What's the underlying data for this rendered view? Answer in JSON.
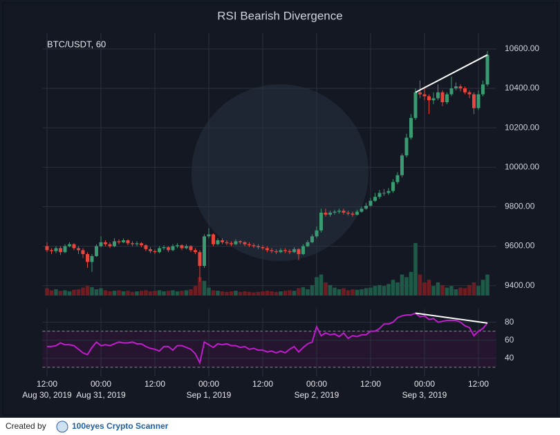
{
  "chart_data": {
    "type": "candlestick",
    "title": "RSI Bearish Divergence",
    "symbol_label": "BTC/USDT, 60",
    "up_color": "#3a9a72",
    "down_color": "#e8453c",
    "grid": true,
    "xlim": [
      -1,
      100
    ],
    "xticks": [
      {
        "value": 0,
        "label": "12:00"
      },
      {
        "value": 12,
        "label": "00:00"
      },
      {
        "value": 24,
        "label": "12:00"
      },
      {
        "value": 36,
        "label": "00:00"
      },
      {
        "value": 48,
        "label": "12:00"
      },
      {
        "value": 60,
        "label": "00:00"
      },
      {
        "value": 72,
        "label": "12:00"
      },
      {
        "value": 84,
        "label": "00:00"
      },
      {
        "value": 96,
        "label": "12:00"
      }
    ],
    "xdates": [
      {
        "value": 0,
        "label": "Aug 30, 2019"
      },
      {
        "value": 12,
        "label": "Aug 31, 2019"
      },
      {
        "value": 36,
        "label": "Sep 1, 2019"
      },
      {
        "value": 60,
        "label": "Sep 2, 2019"
      },
      {
        "value": 84,
        "label": "Sep 3, 2019"
      }
    ],
    "ylim": [
      9350,
      10680
    ],
    "yticks": [
      {
        "value": 9400,
        "label": "9400.00"
      },
      {
        "value": 9600,
        "label": "9600.00"
      },
      {
        "value": 9800,
        "label": "9800.00"
      },
      {
        "value": 10000,
        "label": "10000.00"
      },
      {
        "value": 10200,
        "label": "10200.00"
      },
      {
        "value": 10400,
        "label": "10400.00"
      },
      {
        "value": 10600,
        "label": "10600.00"
      }
    ],
    "open": [
      9600,
      9580,
      9575,
      9590,
      9570,
      9600,
      9610,
      9590,
      9580,
      9560,
      9520,
      9550,
      9600,
      9620,
      9610,
      9600,
      9625,
      9620,
      9630,
      9615,
      9610,
      9615,
      9605,
      9585,
      9575,
      9570,
      9590,
      9595,
      9580,
      9600,
      9605,
      9590,
      9600,
      9580,
      9570,
      9500,
      9650,
      9660,
      9610,
      9630,
      9620,
      9615,
      9610,
      9625,
      9620,
      9610,
      9605,
      9600,
      9595,
      9590,
      9580,
      9575,
      9570,
      9580,
      9575,
      9570,
      9585,
      9560,
      9600,
      9620,
      9650,
      9680,
      9770,
      9760,
      9770,
      9775,
      9780,
      9770,
      9765,
      9760,
      9775,
      9790,
      9805,
      9830,
      9850,
      9870,
      9870,
      9880,
      9925,
      9960,
      10060,
      10150,
      10250,
      10380,
      10370,
      10360,
      10340,
      10350,
      10380,
      10330,
      10370,
      10400,
      10410,
      10400,
      10380,
      10370,
      10300,
      10370,
      10420
    ],
    "high": [
      9620,
      9590,
      9600,
      9600,
      9610,
      9620,
      9615,
      9600,
      9590,
      9570,
      9560,
      9610,
      9650,
      9630,
      9620,
      9640,
      9635,
      9640,
      9635,
      9625,
      9625,
      9620,
      9610,
      9595,
      9585,
      9600,
      9605,
      9600,
      9610,
      9615,
      9610,
      9610,
      9605,
      9590,
      9580,
      9660,
      9690,
      9665,
      9640,
      9640,
      9630,
      9625,
      9635,
      9630,
      9625,
      9620,
      9615,
      9610,
      9605,
      9600,
      9590,
      9585,
      9590,
      9590,
      9585,
      9595,
      9590,
      9610,
      9630,
      9660,
      9700,
      9790,
      9790,
      9780,
      9785,
      9790,
      9790,
      9780,
      9775,
      9785,
      9800,
      9820,
      9845,
      9870,
      9885,
      9890,
      9895,
      9940,
      9975,
      10070,
      10170,
      10270,
      10400,
      10440,
      10400,
      10370,
      10380,
      10420,
      10390,
      10380,
      10460,
      10430,
      10420,
      10410,
      10390,
      10380,
      10390,
      10440,
      10590
    ],
    "low": [
      9570,
      9560,
      9565,
      9555,
      9565,
      9595,
      9580,
      9560,
      9540,
      9490,
      9470,
      9545,
      9595,
      9600,
      9590,
      9595,
      9610,
      9615,
      9605,
      9600,
      9600,
      9595,
      9575,
      9565,
      9560,
      9565,
      9580,
      9570,
      9575,
      9590,
      9580,
      9585,
      9570,
      9560,
      9420,
      9490,
      9640,
      9600,
      9605,
      9610,
      9605,
      9600,
      9605,
      9610,
      9600,
      9595,
      9590,
      9585,
      9580,
      9570,
      9565,
      9560,
      9565,
      9565,
      9560,
      9565,
      9530,
      9555,
      9595,
      9615,
      9640,
      9670,
      9750,
      9750,
      9760,
      9765,
      9760,
      9755,
      9750,
      9755,
      9770,
      9785,
      9800,
      9825,
      9840,
      9855,
      9860,
      9870,
      9915,
      9950,
      10050,
      10140,
      10240,
      10350,
      10340,
      10270,
      10320,
      10340,
      10310,
      10320,
      10360,
      10390,
      10385,
      10370,
      10350,
      10270,
      10290,
      10360,
      10410
    ],
    "close": [
      9580,
      9575,
      9590,
      9570,
      9600,
      9610,
      9590,
      9580,
      9560,
      9520,
      9550,
      9600,
      9620,
      9610,
      9600,
      9625,
      9620,
      9630,
      9615,
      9610,
      9615,
      9605,
      9585,
      9575,
      9570,
      9590,
      9595,
      9580,
      9600,
      9605,
      9590,
      9600,
      9580,
      9570,
      9500,
      9650,
      9660,
      9610,
      9630,
      9620,
      9615,
      9610,
      9625,
      9620,
      9610,
      9605,
      9600,
      9595,
      9590,
      9580,
      9575,
      9570,
      9580,
      9575,
      9570,
      9585,
      9560,
      9600,
      9620,
      9650,
      9680,
      9770,
      9760,
      9770,
      9775,
      9780,
      9770,
      9765,
      9760,
      9775,
      9790,
      9805,
      9830,
      9850,
      9870,
      9870,
      9880,
      9925,
      9960,
      10060,
      10150,
      10250,
      10380,
      10370,
      10360,
      10340,
      10350,
      10380,
      10330,
      10370,
      10400,
      10410,
      10400,
      10380,
      10370,
      10300,
      10370,
      10420,
      10570
    ],
    "volume": {
      "up_color": "#1f5a48",
      "down_color": "#6e1d22",
      "ylim": [
        0,
        100
      ],
      "values": [
        14,
        10,
        12,
        9,
        10,
        8,
        11,
        12,
        15,
        18,
        16,
        12,
        14,
        10,
        8,
        9,
        10,
        8,
        9,
        7,
        8,
        9,
        10,
        8,
        9,
        10,
        8,
        9,
        10,
        8,
        9,
        10,
        12,
        18,
        35,
        28,
        15,
        10,
        9,
        8,
        7,
        8,
        9,
        7,
        8,
        7,
        6,
        7,
        8,
        9,
        8,
        7,
        8,
        9,
        10,
        9,
        14,
        16,
        12,
        20,
        35,
        40,
        25,
        20,
        15,
        12,
        14,
        10,
        12,
        11,
        12,
        14,
        15,
        18,
        20,
        18,
        22,
        30,
        25,
        40,
        35,
        45,
        100,
        40,
        25,
        30,
        18,
        25,
        20,
        15,
        18,
        12,
        15,
        14,
        20,
        25,
        18,
        30,
        40
      ]
    },
    "divergence_price": {
      "color": "#ffffff",
      "x": [
        82,
        98
      ],
      "y": [
        10380,
        10570
      ]
    },
    "rsi": {
      "color": "#c21ccf",
      "ylim": [
        20,
        95
      ],
      "yticks": [
        40,
        60,
        80
      ],
      "levels": [
        30,
        70
      ],
      "band_color": "#2a1533",
      "values": [
        53,
        53,
        54,
        57,
        55,
        55,
        54,
        50,
        46,
        44,
        52,
        58,
        54,
        55,
        54,
        56,
        58,
        57,
        57,
        58,
        56,
        56,
        53,
        51,
        50,
        48,
        53,
        53,
        49,
        54,
        54,
        52,
        50,
        45,
        35,
        58,
        55,
        52,
        56,
        55,
        56,
        54,
        54,
        52,
        53,
        50,
        51,
        49,
        49,
        47,
        48,
        46,
        48,
        46,
        50,
        53,
        47,
        52,
        56,
        58,
        75,
        65,
        68,
        66,
        67,
        64,
        68,
        62,
        65,
        64,
        66,
        66,
        70,
        70,
        73,
        78,
        78,
        80,
        85,
        87,
        88,
        88,
        90,
        86,
        87,
        83,
        84,
        80,
        81,
        82,
        82,
        82,
        80,
        76,
        74,
        65,
        70,
        73,
        79
      ],
      "divergence": {
        "color": "#ffffff",
        "x": [
          82,
          98
        ],
        "y": [
          90,
          79
        ]
      }
    }
  },
  "footer": {
    "created_by": "Created by",
    "brand": "100eyes Crypto Scanner"
  }
}
